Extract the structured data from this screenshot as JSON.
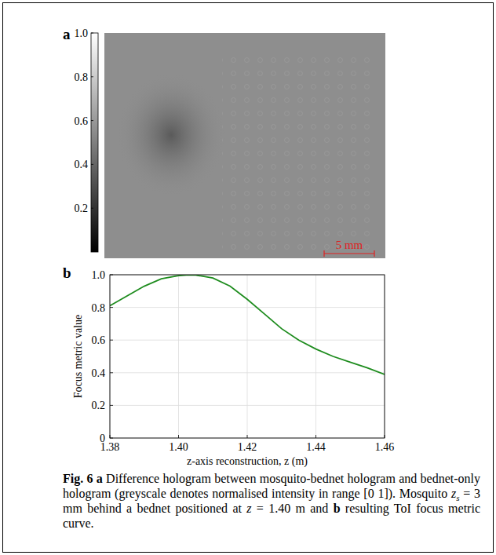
{
  "chart_data": [
    {
      "type": "image",
      "panel": "a",
      "colorbar_lim": [
        0,
        1
      ],
      "colorbar_ticks": [
        0.2,
        0.4,
        0.6,
        0.8,
        {
          "value": 1,
          "label": "1.0"
        }
      ],
      "scale_bar": {
        "label": "5 mm",
        "color": "#e02020"
      }
    },
    {
      "type": "line",
      "panel": "b",
      "x_label": "z-axis reconstruction, z (m)",
      "y_label": "Focus metric value",
      "x": [
        1.38,
        1.385,
        1.39,
        1.395,
        1.4,
        1.403,
        1.405,
        1.41,
        1.415,
        1.42,
        1.425,
        1.43,
        1.435,
        1.44,
        1.445,
        1.45,
        1.455,
        1.46
      ],
      "values": [
        0.81,
        0.87,
        0.93,
        0.975,
        0.995,
        1.0,
        0.998,
        0.98,
        0.93,
        0.85,
        0.76,
        0.67,
        0.6,
        0.545,
        0.5,
        0.465,
        0.43,
        0.39
      ],
      "color": "#1e8c1e",
      "xlim": [
        1.38,
        1.46
      ],
      "xticks": [
        1.38,
        {
          "value": 1.4,
          "label": "1.40"
        },
        1.42,
        1.44,
        1.46
      ],
      "ylim": [
        0,
        1
      ],
      "yticks": [
        0,
        0.2,
        0.4,
        0.6,
        0.8,
        {
          "value": 1,
          "label": "1.0"
        }
      ],
      "grid": true
    }
  ],
  "caption": {
    "runs": [
      {
        "text": "Fig. 6 a",
        "b": true
      },
      {
        "text": " Difference hologram between mosquito-bednet hologram and bednet-only hologram (greyscale denotes normalised intensity in range [0 1]). Mosquito "
      },
      {
        "text": "z",
        "i": true
      },
      {
        "text": "s",
        "i": true,
        "sub": true
      },
      {
        "text": " = 3 mm behind a bednet positioned at "
      },
      {
        "text": "z",
        "i": true
      },
      {
        "text": " = 1.40 m and "
      },
      {
        "text": "b",
        "b": true
      },
      {
        "text": " resulting ToI focus metric curve."
      }
    ]
  }
}
